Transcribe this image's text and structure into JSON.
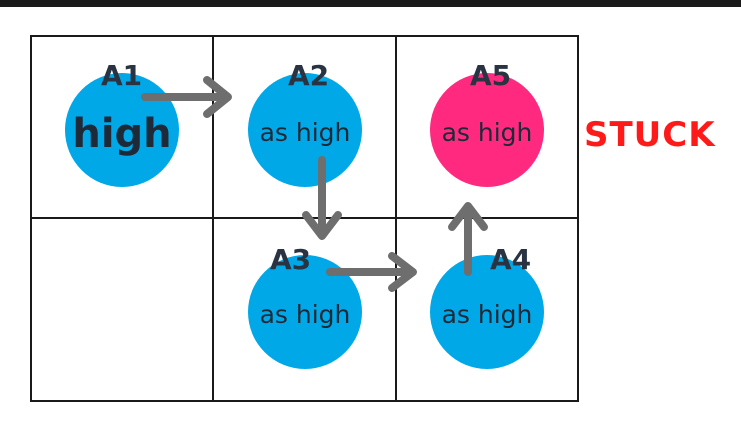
{
  "nodes": [
    {
      "id": "A1",
      "text": "high",
      "color": "#00a8e8"
    },
    {
      "id": "A2",
      "text": "as high",
      "color": "#00a8e8"
    },
    {
      "id": "A3",
      "text": "as high",
      "color": "#00a8e8"
    },
    {
      "id": "A4",
      "text": "as high",
      "color": "#00a8e8"
    },
    {
      "id": "A5",
      "text": "as high",
      "color": "#ff2a80"
    }
  ],
  "status": {
    "label": "STUCK",
    "color": "#ff1a1a"
  },
  "arrow_color": "#6e6e6e",
  "edges": [
    {
      "from": "A1",
      "to": "A2"
    },
    {
      "from": "A2",
      "to": "A3"
    },
    {
      "from": "A3",
      "to": "A4"
    },
    {
      "from": "A4",
      "to": "A5"
    }
  ]
}
